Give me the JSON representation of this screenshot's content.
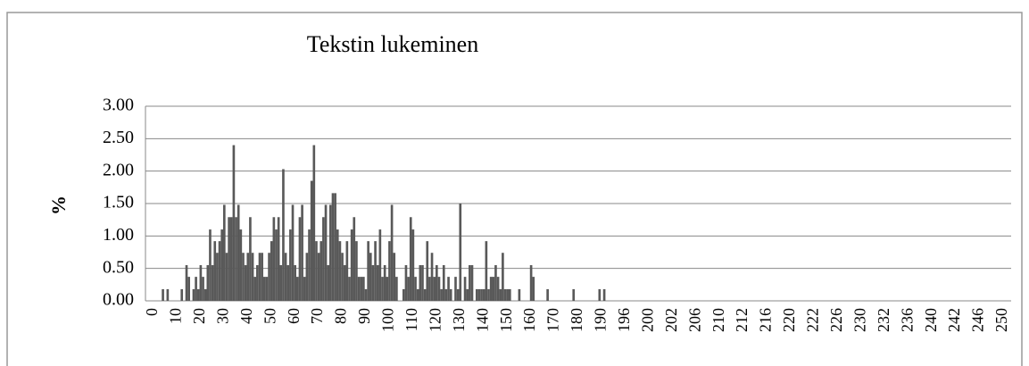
{
  "chart_data": {
    "type": "bar",
    "title": "Tekstin lukeminen",
    "y_label": "%",
    "color": "#595959",
    "grid": true,
    "ylim": [
      0,
      3
    ],
    "yticks": [
      {
        "value": 0,
        "label": "0.00"
      },
      {
        "value": 0.5,
        "label": "0.50"
      },
      {
        "value": 1,
        "label": "1.00"
      },
      {
        "value": 1.5,
        "label": "1.50"
      },
      {
        "value": 2,
        "label": "2.00"
      },
      {
        "value": 2.5,
        "label": "2.50"
      },
      {
        "value": 3,
        "label": "3.00"
      }
    ],
    "categories": [
      "0",
      null,
      null,
      null,
      null,
      null,
      null,
      null,
      null,
      null,
      "10",
      null,
      null,
      null,
      null,
      null,
      null,
      null,
      null,
      null,
      "20",
      null,
      null,
      null,
      null,
      null,
      null,
      null,
      null,
      null,
      "30",
      null,
      null,
      null,
      null,
      null,
      null,
      null,
      null,
      null,
      "40",
      null,
      null,
      null,
      null,
      null,
      null,
      null,
      null,
      null,
      "50",
      null,
      null,
      null,
      null,
      null,
      null,
      null,
      null,
      null,
      "60",
      null,
      null,
      null,
      null,
      null,
      null,
      null,
      null,
      null,
      "70",
      null,
      null,
      null,
      null,
      null,
      null,
      null,
      null,
      null,
      "80",
      null,
      null,
      null,
      null,
      null,
      null,
      null,
      null,
      null,
      "90",
      null,
      null,
      null,
      null,
      null,
      null,
      null,
      null,
      null,
      "100",
      null,
      null,
      null,
      null,
      null,
      null,
      null,
      null,
      null,
      "110",
      null,
      null,
      null,
      null,
      null,
      null,
      null,
      null,
      null,
      "120",
      null,
      null,
      null,
      null,
      null,
      null,
      null,
      null,
      null,
      "130",
      null,
      null,
      null,
      null,
      null,
      null,
      null,
      null,
      null,
      "140",
      null,
      null,
      null,
      null,
      null,
      null,
      null,
      null,
      null,
      "150",
      null,
      null,
      null,
      null,
      null,
      null,
      null,
      null,
      null,
      "160",
      null,
      null,
      null,
      null,
      null,
      null,
      null,
      null,
      null,
      "170",
      null,
      null,
      null,
      null,
      null,
      null,
      null,
      null,
      null,
      "180",
      null,
      null,
      null,
      null,
      null,
      null,
      null,
      null,
      null,
      "190",
      null,
      null,
      null,
      null,
      null,
      null,
      null,
      null,
      null,
      "196",
      null,
      null,
      null,
      null,
      null,
      null,
      null,
      null,
      null,
      "200",
      null,
      null,
      null,
      null,
      null,
      null,
      null,
      null,
      null,
      "202",
      null,
      null,
      null,
      null,
      null,
      null,
      null,
      null,
      null,
      "206",
      null,
      null,
      null,
      null,
      null,
      null,
      null,
      null,
      null,
      "210",
      null,
      null,
      null,
      null,
      null,
      null,
      null,
      null,
      null,
      "212",
      null,
      null,
      null,
      null,
      null,
      null,
      null,
      null,
      null,
      "216",
      null,
      null,
      null,
      null,
      null,
      null,
      null,
      null,
      null,
      "220",
      null,
      null,
      null,
      null,
      null,
      null,
      null,
      null,
      null,
      "222",
      null,
      null,
      null,
      null,
      null,
      null,
      null,
      null,
      null,
      "226",
      null,
      null,
      null,
      null,
      null,
      null,
      null,
      null,
      null,
      "230",
      null,
      null,
      null,
      null,
      null,
      null,
      null,
      null,
      null,
      "232",
      null,
      null,
      null,
      null,
      null,
      null,
      null,
      null,
      null,
      "236",
      null,
      null,
      null,
      null,
      null,
      null,
      null,
      null,
      null,
      "240",
      null,
      null,
      null,
      null,
      null,
      null,
      null,
      null,
      null,
      "242",
      null,
      null,
      null,
      null,
      null,
      null,
      null,
      null,
      null,
      "246",
      null,
      null,
      null,
      null,
      null,
      null,
      null,
      null,
      null,
      "250"
    ],
    "values": [
      0,
      0,
      0,
      0,
      0.18,
      0,
      0.18,
      0,
      0,
      0,
      0,
      0,
      0.18,
      0,
      0.55,
      0.37,
      0,
      0.18,
      0.37,
      0.18,
      0.55,
      0.37,
      0.18,
      0.55,
      1.1,
      0.55,
      0.92,
      0.74,
      0.92,
      1.1,
      1.48,
      0.74,
      1.29,
      1.29,
      2.4,
      1.29,
      1.48,
      1.1,
      0.74,
      0.55,
      0.74,
      1.29,
      0.74,
      0.37,
      0.55,
      0.74,
      0.74,
      0.37,
      0.37,
      0.74,
      0.92,
      1.29,
      1.1,
      1.29,
      0.55,
      2.03,
      0.74,
      0.55,
      1.1,
      1.48,
      0.55,
      0.37,
      1.29,
      1.48,
      0.37,
      0.74,
      1.1,
      1.85,
      2.4,
      0.92,
      0.74,
      0.92,
      1.29,
      1.48,
      0.55,
      1.48,
      1.66,
      1.66,
      1.1,
      0.92,
      0.74,
      0.55,
      0.92,
      0.37,
      1.1,
      1.29,
      0.92,
      0.37,
      0.37,
      0.37,
      0.18,
      0.92,
      0.74,
      0.55,
      0.92,
      0.55,
      1.1,
      0.37,
      0.55,
      0.37,
      0.92,
      1.48,
      0.74,
      0.37,
      0,
      0,
      0.18,
      0.55,
      0.37,
      1.29,
      1.1,
      0.37,
      0.18,
      0.55,
      0.55,
      0.18,
      0.92,
      0.37,
      0.74,
      0.37,
      0.55,
      0.37,
      0.18,
      0.55,
      0.18,
      0.37,
      0.18,
      0,
      0.37,
      0.18,
      1.5,
      0,
      0.37,
      0.18,
      0.55,
      0.55,
      0,
      0.18,
      0.18,
      0.18,
      0.18,
      0.92,
      0.18,
      0.37,
      0.37,
      0.55,
      0.37,
      0.18,
      0.74,
      0.18,
      0.18,
      0.18,
      0,
      0,
      0,
      0.18,
      0,
      0,
      0,
      0,
      0.55,
      0.37,
      0,
      0,
      0,
      0,
      0,
      0.18,
      0,
      0,
      0,
      0,
      0,
      0,
      0,
      0,
      0,
      0,
      0.18,
      0,
      0,
      0,
      0,
      0,
      0,
      0,
      0,
      0,
      0,
      0.18,
      0,
      0.18,
      0,
      0,
      0,
      0,
      0,
      0,
      0,
      0,
      0,
      0,
      0,
      0,
      0,
      0,
      0,
      0,
      0,
      0,
      0,
      0,
      0,
      0,
      0,
      0,
      0,
      0,
      0,
      0,
      0,
      0,
      0,
      0,
      0,
      0,
      0,
      0,
      0,
      0,
      0,
      0,
      0,
      0,
      0,
      0,
      0,
      0,
      0,
      0,
      0,
      0,
      0,
      0,
      0,
      0,
      0,
      0,
      0,
      0,
      0,
      0,
      0,
      0,
      0,
      0,
      0,
      0,
      0,
      0,
      0,
      0,
      0,
      0,
      0,
      0,
      0,
      0,
      0,
      0,
      0,
      0,
      0,
      0,
      0,
      0,
      0,
      0,
      0,
      0,
      0,
      0,
      0,
      0,
      0,
      0,
      0,
      0,
      0,
      0,
      0,
      0,
      0,
      0,
      0,
      0,
      0,
      0,
      0,
      0,
      0,
      0,
      0,
      0,
      0,
      0,
      0,
      0,
      0,
      0,
      0,
      0,
      0,
      0,
      0,
      0,
      0,
      0,
      0,
      0,
      0,
      0,
      0,
      0,
      0,
      0,
      0,
      0,
      0,
      0,
      0,
      0,
      0,
      0,
      0,
      0,
      0,
      0,
      0,
      0,
      0,
      0,
      0,
      0,
      0,
      0,
      0,
      0,
      0,
      0,
      0,
      0,
      0,
      0,
      0,
      0,
      0,
      0,
      0,
      0,
      0
    ]
  }
}
